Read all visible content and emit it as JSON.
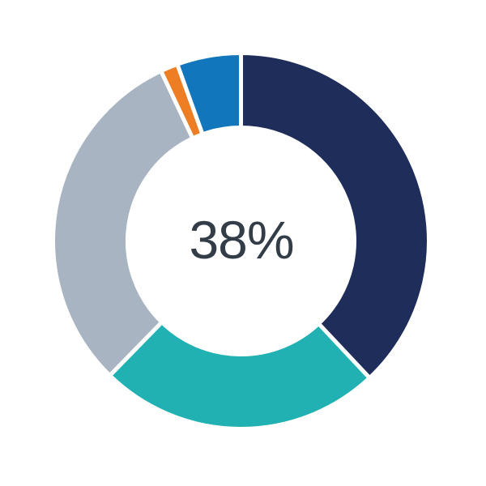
{
  "chart_data": {
    "type": "pie",
    "subtype": "donut",
    "center_label": "38%",
    "label_color": "#333D47",
    "start_angle_deg": 0,
    "direction": "clockwise",
    "segments": [
      {
        "name": "navy",
        "value": 38.0,
        "color": "#1E2D5A"
      },
      {
        "name": "teal",
        "value": 24.3,
        "color": "#21B1B3"
      },
      {
        "name": "gray",
        "value": 30.7,
        "color": "#A9B4C2"
      },
      {
        "name": "orange",
        "value": 1.5,
        "color": "#EE7E23"
      },
      {
        "name": "blue",
        "value": 5.5,
        "color": "#1176BC"
      }
    ],
    "center": {
      "x": 297.5,
      "y": 297.5
    },
    "outer_radius": 232,
    "inner_radius": 140,
    "gap_color": "#FFFFFF",
    "gap_width": 5,
    "legend": "none",
    "background": "#FFFFFF"
  }
}
